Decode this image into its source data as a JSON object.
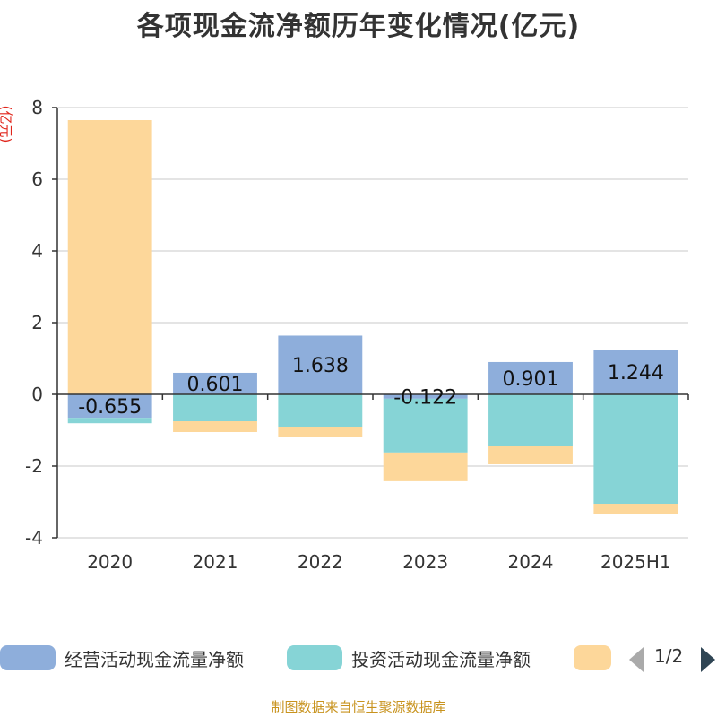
{
  "title": "各项现金流净额历年变化情况(亿元)",
  "unit_label": "(亿元)",
  "source": "制图数据来自恒生聚源数据库",
  "legend": {
    "items": [
      {
        "label": "经营活动现金流量净额",
        "color": "#8eaedb"
      },
      {
        "label": "投资活动现金流量净额",
        "color": "#86d4d6"
      },
      {
        "label": "",
        "color": "#fdd79a"
      }
    ],
    "page_text": "1/2"
  },
  "chart_data": {
    "type": "bar",
    "stacked": true,
    "categories": [
      "2020",
      "2021",
      "2022",
      "2023",
      "2024",
      "2025H1"
    ],
    "ylim": [
      -4,
      8
    ],
    "yticks": [
      "-4",
      "-2",
      "0",
      "2",
      "4",
      "6",
      "8"
    ],
    "grid": true,
    "legend_position": "bottom",
    "series": [
      {
        "name": "经营活动现金流量净额",
        "color": "#8eaedb",
        "values": [
          -0.655,
          0.601,
          1.638,
          -0.122,
          0.901,
          1.244
        ],
        "labels": [
          "-0.655",
          "0.601",
          "1.638",
          "-0.122",
          "0.901",
          "1.244"
        ]
      },
      {
        "name": "投资活动现金流量净额",
        "color": "#86d4d6",
        "values": [
          -0.15,
          -0.75,
          -0.9,
          -1.5,
          -1.45,
          -3.05
        ]
      },
      {
        "color": "#fdd79a",
        "values": [
          7.65,
          -0.3,
          -0.3,
          -0.8,
          -0.5,
          -0.3
        ]
      }
    ]
  }
}
